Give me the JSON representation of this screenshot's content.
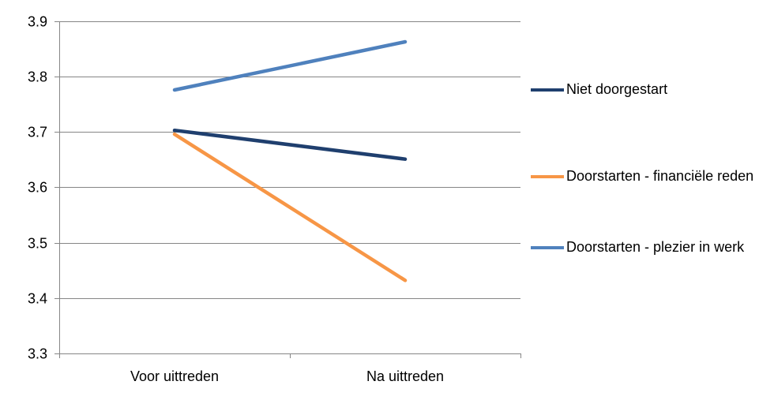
{
  "chart_data": {
    "type": "line",
    "categories": [
      "Voor uittreden",
      "Na uittreden"
    ],
    "series": [
      {
        "name": "Niet doorgestart",
        "values": [
          3.703,
          3.651
        ],
        "color": "#1f3f6e"
      },
      {
        "name": "Doorstarten - financiële reden",
        "values": [
          3.696,
          3.432
        ],
        "color": "#f79646"
      },
      {
        "name": "Doorstarten - plezier in werk",
        "values": [
          3.776,
          3.863
        ],
        "color": "#4f81bd"
      }
    ],
    "yticks": [
      "3.3",
      "3.4",
      "3.5",
      "3.6",
      "3.7",
      "3.8",
      "3.9"
    ],
    "ylim": [
      3.3,
      3.9
    ],
    "grid": true,
    "legend_position": "right",
    "title": "",
    "xlabel": "",
    "ylabel": ""
  }
}
